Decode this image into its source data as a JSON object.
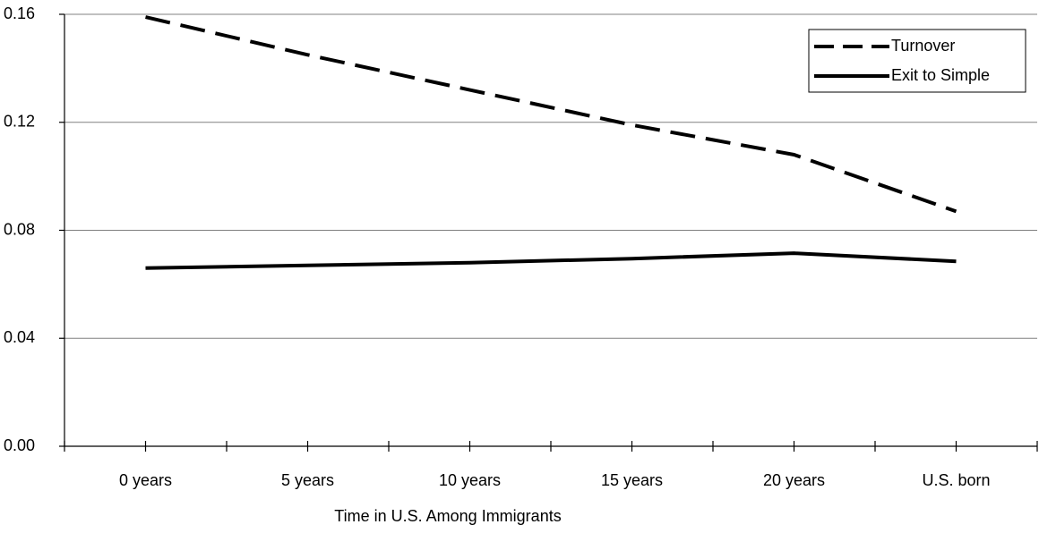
{
  "chart_data": {
    "type": "line",
    "x_label": "Time in U.S. Among Immigrants",
    "categories": [
      "0 years",
      "5 years",
      "10 years",
      "15 years",
      "20 years",
      "U.S. born"
    ],
    "series": [
      {
        "name": "Turnover",
        "color": "#000000",
        "style": "dashed",
        "values": [
          0.159,
          0.145,
          0.132,
          0.119,
          0.108,
          0.087
        ]
      },
      {
        "name": "Exit to Simple",
        "color": "#000000",
        "style": "solid",
        "values": [
          0.066,
          0.067,
          0.068,
          0.0695,
          0.0715,
          0.0685
        ]
      }
    ],
    "ylim": [
      0,
      0.16
    ],
    "yticks": [
      {
        "value": 0,
        "label": "0.00"
      },
      0.04,
      0.08,
      0.12,
      0.16
    ],
    "grid": true,
    "legend": "upper right"
  }
}
